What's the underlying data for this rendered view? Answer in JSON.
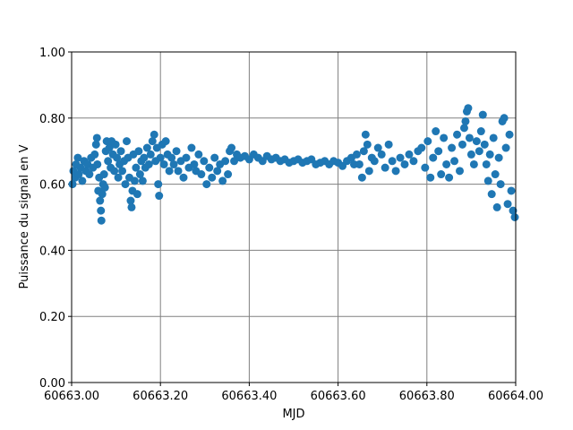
{
  "chart_data": {
    "type": "scatter",
    "xlabel": "MJD",
    "ylabel": "Puissance du signal en V",
    "color": "#1f77b4",
    "grid": true,
    "xlim": [
      60663.0,
      60664.0
    ],
    "xticks": [
      {
        "value": 60663.0,
        "label": "60663.00"
      },
      {
        "value": 60663.2,
        "label": "60663.20"
      },
      {
        "value": 60663.4,
        "label": "60663.40"
      },
      {
        "value": 60663.6,
        "label": "60663.60"
      },
      {
        "value": 60663.8,
        "label": "60663.80"
      },
      {
        "value": 60664.0,
        "label": "60664.00"
      }
    ],
    "ylim": [
      0,
      1
    ],
    "yticks": [
      {
        "value": 0,
        "label": "0.00"
      },
      {
        "value": 0.2,
        "label": "0.20"
      },
      {
        "value": 0.4,
        "label": "0.40"
      },
      {
        "value": 0.6,
        "label": "0.60"
      },
      {
        "value": 0.8,
        "label": "0.80"
      },
      {
        "value": 1,
        "label": "1.00"
      }
    ],
    "x": [
      60663.002,
      60663.004,
      60663.008,
      60663.01,
      60663.014,
      60663.016,
      60663.02,
      60663.024,
      60663.028,
      60663.032,
      60663.036,
      60663.04,
      60663.044,
      60663.048,
      60663.052,
      60663.055,
      60663.057,
      60663.058,
      60663.06,
      60663.062,
      60663.064,
      60663.066,
      60663.067,
      60663.069,
      60663.071,
      60663.073,
      60663.075,
      60663.077,
      60663.079,
      60663.082,
      60663.085,
      60663.088,
      60663.09,
      60663.093,
      60663.096,
      60663.099,
      60663.102,
      60663.105,
      60663.108,
      60663.111,
      60663.114,
      60663.118,
      60663.121,
      60663.124,
      60663.127,
      60663.13,
      60663.133,
      60663.135,
      60663.137,
      60663.139,
      60663.142,
      60663.145,
      60663.148,
      60663.151,
      60663.154,
      60663.157,
      60663.16,
      60663.163,
      60663.166,
      60663.17,
      60663.174,
      60663.178,
      60663.182,
      60663.186,
      60663.189,
      60663.192,
      60663.195,
      60663.197,
      60663.2,
      60663.204,
      60663.208,
      60663.212,
      60663.216,
      60663.22,
      60663.225,
      60663.23,
      60663.236,
      60663.24,
      60663.246,
      60663.252,
      60663.258,
      60663.264,
      60663.27,
      60663.276,
      60663.28,
      60663.286,
      60663.292,
      60663.298,
      60663.304,
      60663.31,
      60663.316,
      60663.322,
      60663.328,
      60663.334,
      60663.34,
      60663.346,
      60663.352,
      60663.356,
      60663.36,
      60663.366,
      60663.372,
      60663.38,
      60663.39,
      60663.4,
      60663.41,
      60663.42,
      60663.43,
      60663.44,
      60663.45,
      60663.46,
      60663.47,
      60663.48,
      60663.49,
      60663.5,
      60663.51,
      60663.52,
      60663.53,
      60663.54,
      60663.55,
      60663.56,
      60663.57,
      60663.58,
      60663.59,
      60663.6,
      60663.61,
      60663.62,
      60663.63,
      60663.636,
      60663.642,
      60663.648,
      60663.654,
      60663.658,
      60663.662,
      60663.666,
      60663.67,
      60663.676,
      60663.682,
      60663.69,
      60663.698,
      60663.706,
      60663.714,
      60663.722,
      60663.73,
      60663.74,
      60663.75,
      60663.76,
      60663.77,
      60663.78,
      60663.788,
      60663.796,
      60663.802,
      60663.808,
      60663.814,
      60663.82,
      60663.826,
      60663.832,
      60663.838,
      60663.844,
      60663.85,
      60663.856,
      60663.862,
      60663.868,
      60663.874,
      60663.88,
      60663.884,
      60663.887,
      60663.89,
      60663.893,
      60663.896,
      60663.9,
      60663.906,
      60663.912,
      60663.918,
      60663.922,
      60663.926,
      60663.93,
      60663.934,
      60663.938,
      60663.942,
      60663.946,
      60663.95,
      60663.954,
      60663.958,
      60663.962,
      60663.966,
      60663.97,
      60663.974,
      60663.978,
      60663.982,
      60663.986,
      60663.99,
      60663.994,
      60663.998
    ],
    "values": [
      0.6,
      0.64,
      0.62,
      0.66,
      0.68,
      0.63,
      0.65,
      0.61,
      0.67,
      0.64,
      0.66,
      0.63,
      0.68,
      0.65,
      0.69,
      0.72,
      0.74,
      0.66,
      0.58,
      0.62,
      0.55,
      0.52,
      0.49,
      0.57,
      0.6,
      0.63,
      0.59,
      0.7,
      0.73,
      0.67,
      0.71,
      0.65,
      0.73,
      0.69,
      0.64,
      0.72,
      0.68,
      0.62,
      0.66,
      0.7,
      0.64,
      0.67,
      0.6,
      0.73,
      0.68,
      0.62,
      0.55,
      0.53,
      0.58,
      0.69,
      0.61,
      0.65,
      0.57,
      0.7,
      0.63,
      0.67,
      0.61,
      0.68,
      0.65,
      0.71,
      0.66,
      0.69,
      0.73,
      0.75,
      0.67,
      0.71,
      0.6,
      0.565,
      0.68,
      0.72,
      0.66,
      0.73,
      0.69,
      0.64,
      0.68,
      0.66,
      0.7,
      0.64,
      0.67,
      0.62,
      0.68,
      0.65,
      0.71,
      0.66,
      0.64,
      0.69,
      0.63,
      0.67,
      0.6,
      0.65,
      0.62,
      0.68,
      0.64,
      0.66,
      0.61,
      0.67,
      0.63,
      0.7,
      0.71,
      0.67,
      0.69,
      0.68,
      0.685,
      0.675,
      0.69,
      0.68,
      0.67,
      0.685,
      0.675,
      0.68,
      0.67,
      0.675,
      0.665,
      0.67,
      0.675,
      0.665,
      0.67,
      0.675,
      0.66,
      0.665,
      0.67,
      0.66,
      0.67,
      0.665,
      0.655,
      0.67,
      0.68,
      0.66,
      0.69,
      0.66,
      0.62,
      0.7,
      0.75,
      0.72,
      0.64,
      0.68,
      0.67,
      0.71,
      0.69,
      0.65,
      0.72,
      0.67,
      0.64,
      0.68,
      0.66,
      0.69,
      0.67,
      0.7,
      0.71,
      0.65,
      0.73,
      0.62,
      0.68,
      0.76,
      0.7,
      0.63,
      0.74,
      0.66,
      0.62,
      0.71,
      0.67,
      0.75,
      0.64,
      0.72,
      0.77,
      0.79,
      0.82,
      0.83,
      0.74,
      0.69,
      0.66,
      0.73,
      0.7,
      0.76,
      0.81,
      0.72,
      0.66,
      0.61,
      0.69,
      0.57,
      0.74,
      0.63,
      0.53,
      0.68,
      0.6,
      0.79,
      0.8,
      0.71,
      0.54,
      0.75,
      0.58,
      0.52,
      0.5
    ]
  }
}
